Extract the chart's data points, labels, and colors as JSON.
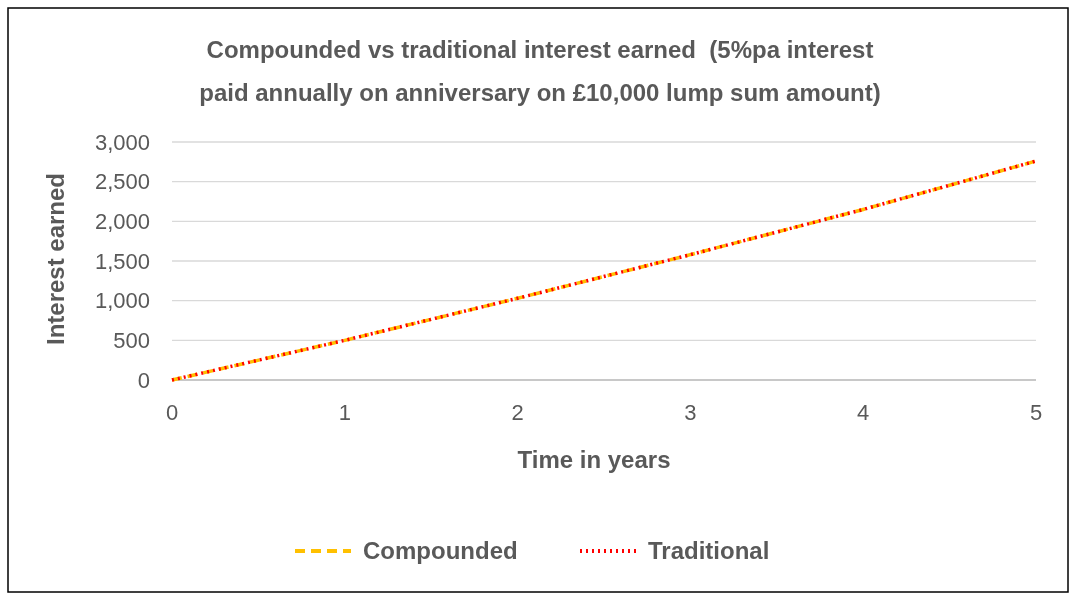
{
  "chart_data": {
    "type": "line",
    "title": "Compounded vs traditional interest earned  (5%pa interest paid annually on anniversary on £10,000 lump sum amount)",
    "xlabel": "Time in years",
    "ylabel": "Interest earned",
    "x": [
      0,
      1,
      2,
      3,
      4,
      5
    ],
    "series": [
      {
        "name": "Compounded",
        "color": "#ffc000",
        "line_style": "dashed",
        "values": [
          0,
          500,
          1030,
          1580,
          2150,
          2760
        ]
      },
      {
        "name": "Traditional",
        "color": "#ff0000",
        "line_style": "dotted",
        "values": [
          0,
          500,
          1030,
          1580,
          2150,
          2760
        ]
      }
    ],
    "xlim": [
      0,
      5
    ],
    "xticks": [
      0,
      1,
      2,
      3,
      4,
      5
    ],
    "ylim": [
      0,
      3000
    ],
    "yticks": [
      0,
      500,
      {
        "value": 1000,
        "label": "1,000"
      },
      {
        "value": 1500,
        "label": "1,500"
      },
      {
        "value": 2000,
        "label": "2,000"
      },
      {
        "value": 2500,
        "label": "2,500"
      },
      {
        "value": 3000,
        "label": "3,000"
      }
    ],
    "grid": "y",
    "legend": "bottom",
    "marker": "none"
  }
}
